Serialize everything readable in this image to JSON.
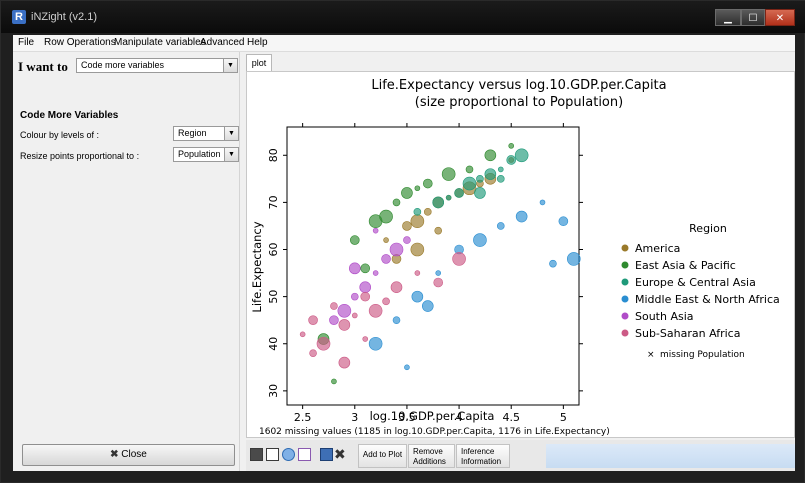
{
  "window": {
    "title": "iNZight (v2.1)",
    "app_icon": "R"
  },
  "menu": {
    "items": [
      "File",
      "Row Operations",
      "Manipulate variables",
      "Advanced",
      "Help"
    ]
  },
  "left_panel": {
    "i_want_label": "I want to",
    "i_want_value": "Code more variables",
    "section_title": "Code More Variables",
    "colour_label": "Colour by levels of :",
    "colour_value": "Region",
    "resize_label": "Resize points proportional to :",
    "resize_value": "Population",
    "close_label": "Close"
  },
  "tabs": [
    {
      "label": "plot"
    }
  ],
  "plot": {
    "title_line1": "Life.Expectancy versus log.10.GDP.per.Capita",
    "title_line2": "(size proportional to Population)",
    "footer": "1602 missing values (1185 in log.10.GDP.per.Capita, 1176 in Life.Expectancy)"
  },
  "chart_data": {
    "type": "scatter",
    "xlabel": "log.10.GDP.per.Capita",
    "ylabel": "Life.Expectancy",
    "xlim": [
      2.35,
      5.15
    ],
    "ylim": [
      27,
      86
    ],
    "x_ticks": [
      "2.5",
      "3",
      "3.5",
      "4",
      "4.5",
      "5"
    ],
    "y_ticks": [
      "30",
      "40",
      "50",
      "60",
      "70",
      "80"
    ],
    "grid": false,
    "legend_position": "right",
    "legend_title": "Region",
    "missing_note": "missing Population",
    "series": [
      {
        "name": "America",
        "color": "#9a7a2a",
        "x": [
          3.3,
          3.5,
          3.6,
          3.7,
          3.8,
          3.9,
          4.0,
          4.1,
          4.2,
          4.3,
          4.5,
          3.4,
          3.6,
          3.8
        ],
        "y": [
          62,
          65,
          66,
          68,
          70,
          71,
          72,
          73,
          74,
          75,
          79,
          58,
          60,
          64
        ]
      },
      {
        "name": "East Asia & Pacific",
        "color": "#2f8a2f",
        "x": [
          2.7,
          2.8,
          3.0,
          3.2,
          3.4,
          3.5,
          3.6,
          3.7,
          3.9,
          4.1,
          4.3,
          4.5,
          3.1,
          3.3
        ],
        "y": [
          41,
          32,
          62,
          66,
          70,
          72,
          73,
          74,
          76,
          77,
          80,
          82,
          56,
          67
        ]
      },
      {
        "name": "Europe & Central Asia",
        "color": "#1f9a7a",
        "x": [
          3.6,
          3.8,
          3.9,
          4.0,
          4.1,
          4.2,
          4.3,
          4.4,
          4.5,
          4.6,
          4.4,
          4.2
        ],
        "y": [
          68,
          70,
          71,
          72,
          74,
          75,
          76,
          77,
          79,
          80,
          75,
          72
        ]
      },
      {
        "name": "Middle East & North Africa",
        "color": "#2a8ed1",
        "x": [
          3.2,
          3.4,
          3.6,
          3.8,
          4.0,
          4.2,
          4.4,
          4.6,
          4.8,
          5.0,
          5.1,
          4.9,
          3.7,
          3.5
        ],
        "y": [
          40,
          45,
          50,
          55,
          60,
          62,
          65,
          67,
          70,
          66,
          58,
          57,
          48,
          35
        ]
      },
      {
        "name": "South Asia",
        "color": "#b04dc8",
        "x": [
          2.8,
          2.9,
          3.0,
          3.1,
          3.2,
          3.3,
          3.4,
          3.5,
          3.0,
          3.2
        ],
        "y": [
          45,
          47,
          50,
          52,
          55,
          58,
          60,
          62,
          56,
          64
        ]
      },
      {
        "name": "Sub-Saharan Africa",
        "color": "#cc5a86",
        "x": [
          2.5,
          2.6,
          2.7,
          2.8,
          2.9,
          3.0,
          3.1,
          3.2,
          3.3,
          3.4,
          3.6,
          3.8,
          4.0,
          2.6,
          2.9,
          3.1
        ],
        "y": [
          42,
          45,
          40,
          48,
          44,
          46,
          50,
          47,
          49,
          52,
          55,
          53,
          58,
          38,
          36,
          41
        ]
      }
    ]
  },
  "toolbar": {
    "add_to_plot": "Add to Plot",
    "remove_additions_line1": "Remove",
    "remove_additions_line2": "Additions",
    "inference_line1": "Inference",
    "inference_line2": "Information"
  }
}
